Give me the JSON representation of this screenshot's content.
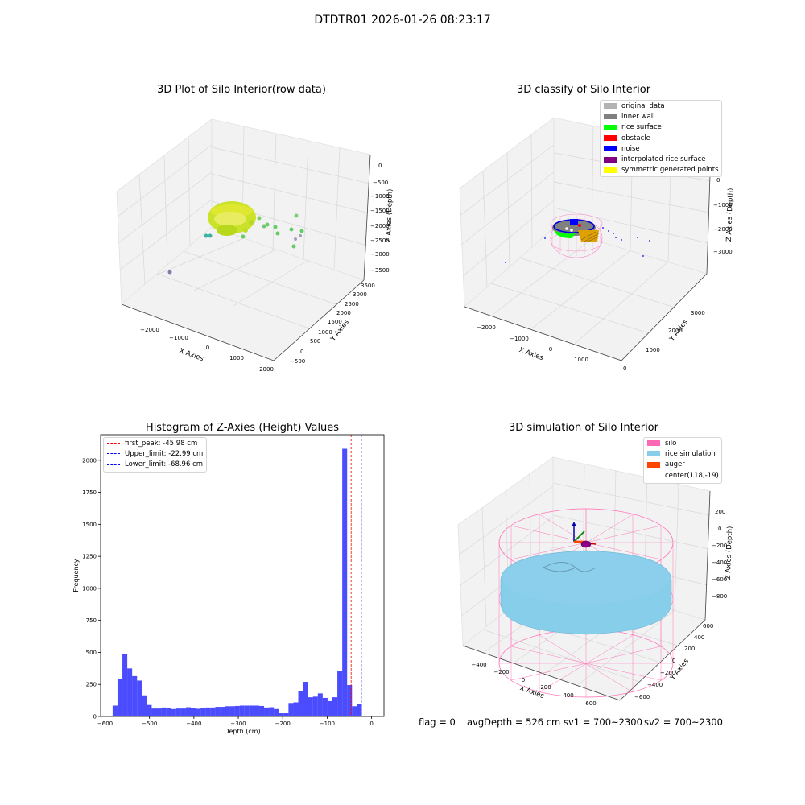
{
  "figure": {
    "suptitle": "DTDTR01 2026-01-26 08:23:17"
  },
  "chart_data": [
    {
      "type": "scatter",
      "title": "3D Plot of Silo Interior(row data)",
      "xlabel": "X Axies",
      "ylabel": "Y Axies",
      "zlabel": "Z Axies (Depth)",
      "x_ticks": [
        "−2000",
        "−1000",
        "0",
        "1000",
        "2000"
      ],
      "y_ticks": [
        "−500",
        "0",
        "500",
        "1000",
        "1500",
        "2000",
        "2500",
        "3000",
        "3500"
      ],
      "z_ticks": [
        "0",
        "−500",
        "−1000",
        "−1500",
        "−2000",
        "−2500",
        "−3000",
        "−3500"
      ],
      "colors": {
        "points": "#c8e020",
        "outliers": "#66cc66",
        "far": "#8877aa"
      }
    },
    {
      "type": "scatter",
      "title": "3D classify of Silo Interior",
      "xlabel": "X Axies",
      "ylabel": "Y Axies",
      "zlabel": "Z Axies (Depth)",
      "x_ticks": [
        "−2000",
        "−1000",
        "0",
        "1000"
      ],
      "y_ticks": [
        "0",
        "1000",
        "2000",
        "3000"
      ],
      "z_ticks": [
        "0",
        "−1000",
        "−2000",
        "−3000"
      ],
      "legend": [
        {
          "label": "original data",
          "color": "#b3b3b3"
        },
        {
          "label": "inner wall",
          "color": "#808080"
        },
        {
          "label": "rice surface",
          "color": "#00ff00"
        },
        {
          "label": "obstacle",
          "color": "#ff0000"
        },
        {
          "label": "noise",
          "color": "#0000ff"
        },
        {
          "label": "interpolated rice surface",
          "color": "#800080"
        },
        {
          "label": "symmetric generated points",
          "color": "#ffff00"
        }
      ]
    },
    {
      "type": "bar",
      "title": "Histogram of Z-Axies (Height) Values",
      "xlabel": "Depth (cm)",
      "ylabel": "Frequency",
      "xlim": [
        -610,
        28
      ],
      "ylim": [
        0,
        2200
      ],
      "x_ticks": [
        -600,
        -500,
        -400,
        -300,
        -200,
        -100,
        0
      ],
      "x_tick_labels": [
        "−600",
        "−500",
        "−400",
        "−300",
        "−200",
        "−100",
        "0"
      ],
      "y_ticks": [
        0,
        250,
        500,
        750,
        1000,
        1250,
        1500,
        1750,
        2000
      ],
      "bar_color": "#0000ff",
      "bins": [
        [
          -583,
          -572,
          85
        ],
        [
          -572,
          -561,
          295
        ],
        [
          -561,
          -550,
          490
        ],
        [
          -550,
          -539,
          375
        ],
        [
          -539,
          -528,
          315
        ],
        [
          -528,
          -517,
          280
        ],
        [
          -517,
          -506,
          165
        ],
        [
          -506,
          -495,
          90
        ],
        [
          -495,
          -484,
          62
        ],
        [
          -484,
          -473,
          62
        ],
        [
          -473,
          -462,
          70
        ],
        [
          -462,
          -451,
          68
        ],
        [
          -451,
          -440,
          58
        ],
        [
          -440,
          -429,
          62
        ],
        [
          -429,
          -418,
          62
        ],
        [
          -418,
          -407,
          72
        ],
        [
          -407,
          -396,
          68
        ],
        [
          -396,
          -385,
          60
        ],
        [
          -385,
          -374,
          68
        ],
        [
          -374,
          -363,
          70
        ],
        [
          -363,
          -352,
          70
        ],
        [
          -352,
          -341,
          75
        ],
        [
          -341,
          -330,
          75
        ],
        [
          -330,
          -319,
          80
        ],
        [
          -319,
          -308,
          80
        ],
        [
          -308,
          -297,
          82
        ],
        [
          -297,
          -286,
          85
        ],
        [
          -286,
          -275,
          85
        ],
        [
          -275,
          -264,
          85
        ],
        [
          -264,
          -253,
          85
        ],
        [
          -253,
          -242,
          82
        ],
        [
          -242,
          -231,
          70
        ],
        [
          -231,
          -220,
          72
        ],
        [
          -220,
          -209,
          58
        ],
        [
          -209,
          -198,
          25
        ],
        [
          -198,
          -187,
          25
        ],
        [
          -187,
          -176,
          105
        ],
        [
          -176,
          -165,
          110
        ],
        [
          -165,
          -154,
          195
        ],
        [
          -154,
          -143,
          270
        ],
        [
          -143,
          -132,
          150
        ],
        [
          -132,
          -121,
          155
        ],
        [
          -121,
          -110,
          180
        ],
        [
          -110,
          -99,
          145
        ],
        [
          -99,
          -88,
          120
        ],
        [
          -88,
          -77,
          150
        ],
        [
          -77,
          -66,
          355
        ],
        [
          -66,
          -55,
          2090
        ],
        [
          -55,
          -44,
          245
        ],
        [
          -44,
          -33,
          80
        ],
        [
          -33,
          -22,
          100
        ]
      ],
      "lines": [
        {
          "label": "first_peak: -45.98 cm",
          "x": -45.98,
          "color": "#ff0000"
        },
        {
          "label": "Upper_limit: -22.99 cm",
          "x": -22.99,
          "color": "#0000ff"
        },
        {
          "label": "Lower_limit: -68.96 cm",
          "x": -68.96,
          "color": "#0000ff"
        }
      ]
    },
    {
      "type": "scatter",
      "title": "3D simulation of Silo Interior",
      "xlabel": "X Axies",
      "ylabel": "Y Axies",
      "zlabel": "Z Axies (Depth)",
      "x_ticks": [
        "−400",
        "−200",
        "0",
        "200",
        "400",
        "600"
      ],
      "y_ticks": [
        "−600",
        "−400",
        "−200",
        "0",
        "200",
        "400",
        "600"
      ],
      "z_ticks": [
        "200",
        "0",
        "−200",
        "−400",
        "−600",
        "−800"
      ],
      "legend": [
        {
          "label": "silo",
          "color": "#ff69b4"
        },
        {
          "label": "rice simulation",
          "color": "#87ceeb"
        },
        {
          "label": "auger",
          "color": "#ff4500"
        },
        {
          "label": "center(118,-19)",
          "color": ""
        }
      ]
    }
  ],
  "footer": {
    "flag": "flag = 0",
    "avg": "avgDepth = 526 cm",
    "sv1": "sv1 = 700~2300",
    "sv2": "sv2 = 700~2300"
  }
}
